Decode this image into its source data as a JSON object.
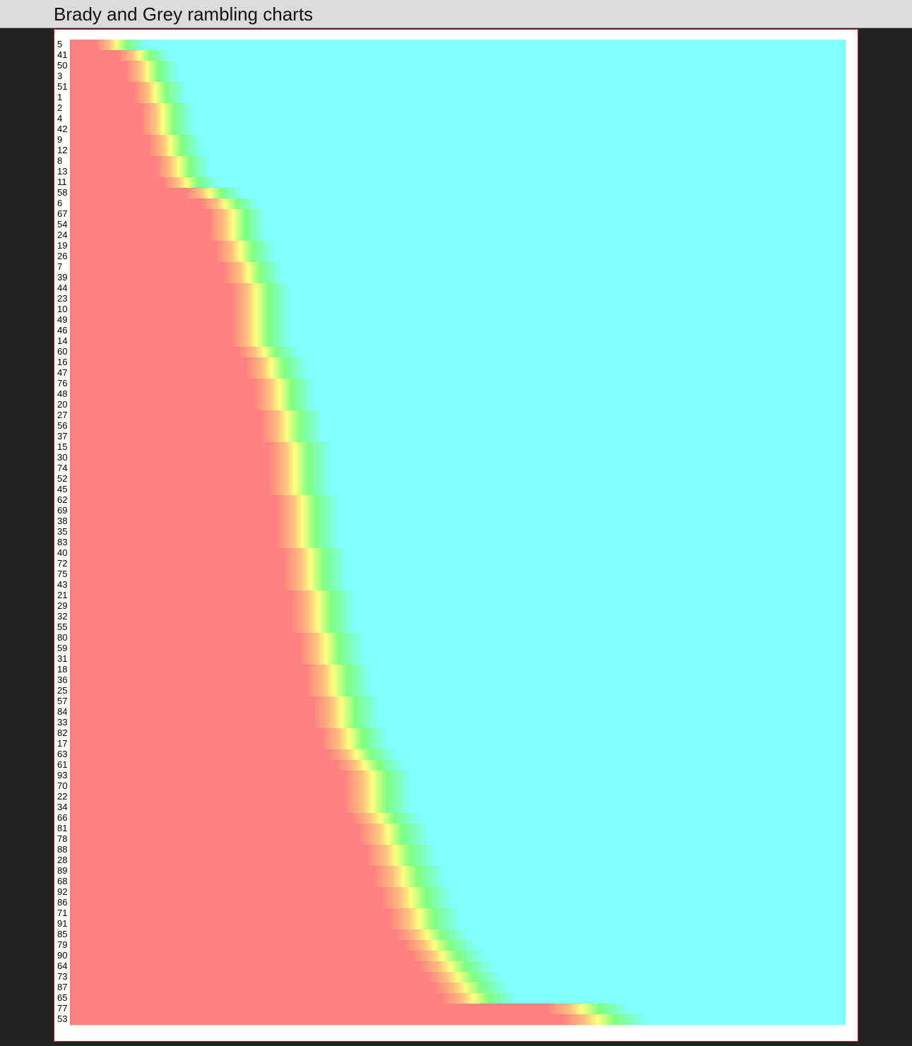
{
  "header": {
    "title": "Brady and Grey rambling charts"
  },
  "colors": {
    "early": "#ff8080",
    "mid_orange": "#ffc080",
    "mid_yellow": "#ffff80",
    "mid_green": "#80ff80",
    "late": "#80ffff",
    "background": "#222222",
    "panel_border": "#c01c28"
  },
  "chart_data": {
    "type": "heatmap",
    "title": "Brady and Grey rambling charts",
    "xlabel": "",
    "ylabel": "",
    "grid": false,
    "legend": "none",
    "color_scale": [
      "#ff8080",
      "#ffc080",
      "#ffff80",
      "#80ff80",
      "#80ffff"
    ],
    "rows": [
      "5",
      "41",
      "50",
      "3",
      "51",
      "1",
      "2",
      "4",
      "42",
      "9",
      "12",
      "8",
      "13",
      "11",
      "58",
      "6",
      "67",
      "54",
      "24",
      "19",
      "26",
      "7",
      "39",
      "44",
      "23",
      "10",
      "49",
      "46",
      "14",
      "60",
      "16",
      "47",
      "76",
      "48",
      "20",
      "27",
      "56",
      "37",
      "15",
      "30",
      "74",
      "52",
      "45",
      "62",
      "69",
      "38",
      "35",
      "83",
      "40",
      "72",
      "75",
      "43",
      "21",
      "29",
      "32",
      "55",
      "80",
      "59",
      "31",
      "18",
      "36",
      "25",
      "57",
      "84",
      "33",
      "82",
      "17",
      "63",
      "61",
      "93",
      "70",
      "22",
      "34",
      "66",
      "81",
      "78",
      "88",
      "28",
      "89",
      "68",
      "92",
      "86",
      "71",
      "91",
      "85",
      "79",
      "90",
      "64",
      "73",
      "87",
      "65",
      "77",
      "53"
    ],
    "transition_fraction": [
      0.06,
      0.09,
      0.1,
      0.1,
      0.11,
      0.11,
      0.12,
      0.12,
      0.12,
      0.13,
      0.13,
      0.14,
      0.14,
      0.15,
      0.18,
      0.2,
      0.21,
      0.21,
      0.21,
      0.22,
      0.22,
      0.23,
      0.23,
      0.24,
      0.24,
      0.24,
      0.24,
      0.24,
      0.24,
      0.25,
      0.26,
      0.26,
      0.27,
      0.27,
      0.27,
      0.28,
      0.28,
      0.28,
      0.29,
      0.29,
      0.29,
      0.29,
      0.29,
      0.3,
      0.3,
      0.3,
      0.3,
      0.3,
      0.31,
      0.31,
      0.31,
      0.31,
      0.32,
      0.32,
      0.32,
      0.32,
      0.33,
      0.33,
      0.33,
      0.34,
      0.34,
      0.34,
      0.35,
      0.35,
      0.35,
      0.36,
      0.36,
      0.37,
      0.38,
      0.39,
      0.39,
      0.39,
      0.39,
      0.4,
      0.41,
      0.41,
      0.42,
      0.42,
      0.43,
      0.43,
      0.44,
      0.44,
      0.45,
      0.45,
      0.46,
      0.47,
      0.48,
      0.49,
      0.5,
      0.51,
      0.52,
      0.66,
      0.68
    ]
  }
}
